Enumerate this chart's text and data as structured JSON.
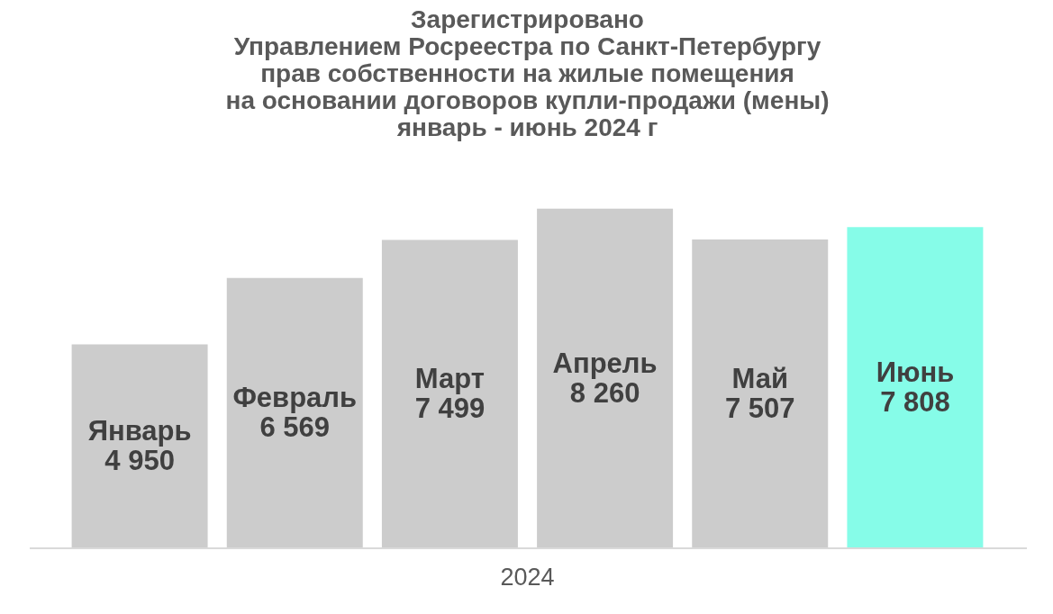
{
  "chart_data": {
    "type": "bar",
    "title": "Зарегистрировано\nУправлением Росреестра по Санкт-Петербургу\nправ собственности на жилые помещения\nна основании договоров купли-продажи (мены)\nянварь - июнь 2024 г",
    "xlabel": "2024",
    "tick_labels": false,
    "categories": [
      "Январь",
      "Февраль",
      "Март",
      "Апрель",
      "Май",
      "Июнь"
    ],
    "values": [
      4950,
      6569,
      7499,
      8260,
      7507,
      7808
    ],
    "value_labels": [
      "4 950",
      "6 569",
      "7 499",
      "8 260",
      "7 507",
      "7 808"
    ],
    "colors": [
      "#cccccc",
      "#cccccc",
      "#cccccc",
      "#cccccc",
      "#cccccc",
      "#86fce8"
    ]
  }
}
